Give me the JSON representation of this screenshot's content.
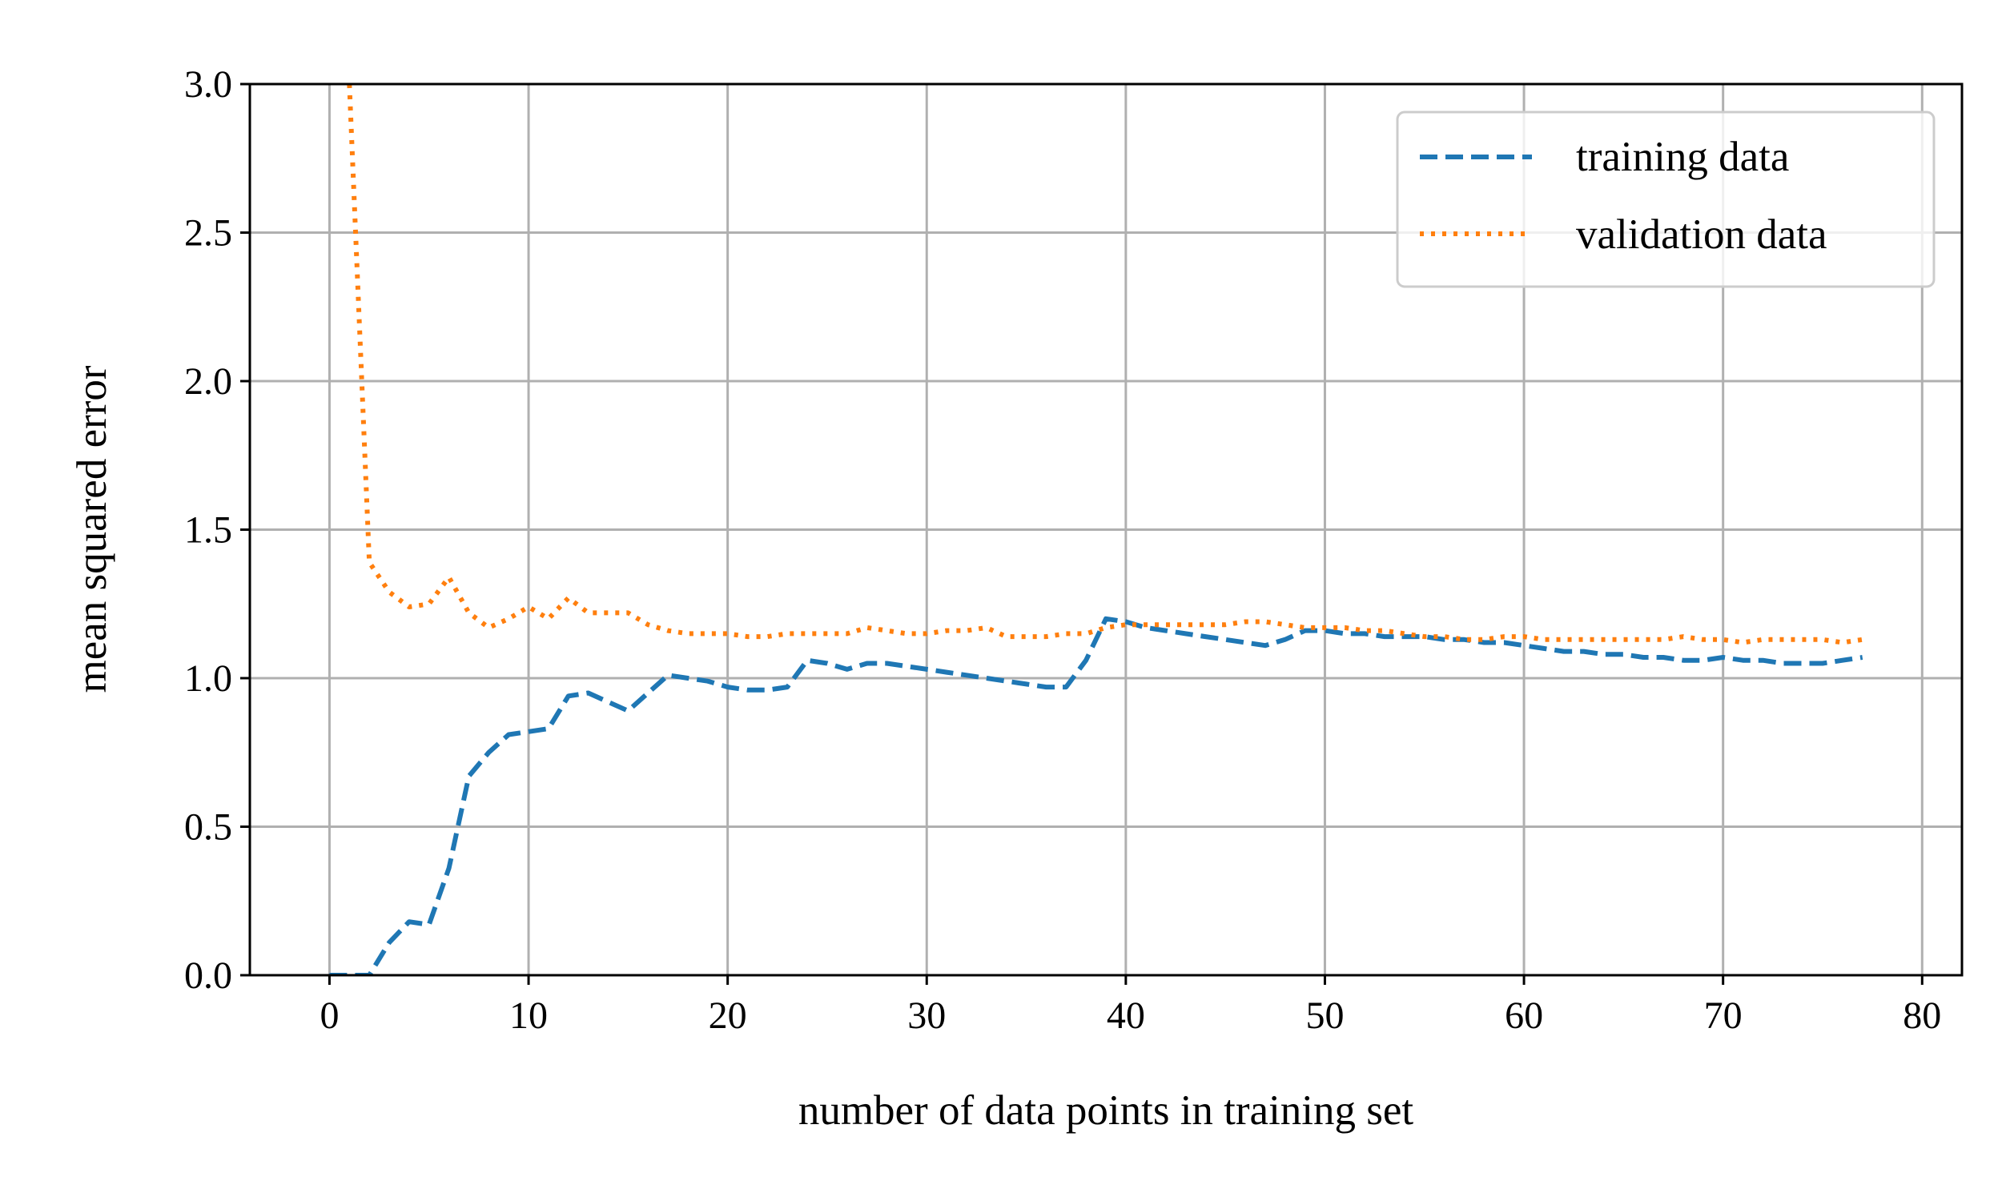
{
  "chart_data": {
    "type": "line",
    "title": "",
    "xlabel": "number of data points in training set",
    "ylabel": "mean squared error",
    "xlim": [
      -4,
      82
    ],
    "ylim": [
      0,
      3.0
    ],
    "xticks": [
      0,
      10,
      20,
      30,
      40,
      50,
      60,
      70,
      80
    ],
    "xtick_labels": [
      "0",
      "10",
      "20",
      "30",
      "40",
      "50",
      "60",
      "70",
      "80"
    ],
    "yticks": [
      0.0,
      0.5,
      1.0,
      1.5,
      2.0,
      2.5,
      3.0
    ],
    "ytick_labels": [
      "0.0",
      "0.5",
      "1.0",
      "1.5",
      "2.0",
      "2.5",
      "3.0"
    ],
    "grid": true,
    "legend_position": "top-right",
    "series": [
      {
        "name": "training data",
        "color": "#1f77b4",
        "linestyle": "dashed",
        "x": [
          0,
          1,
          2,
          3,
          4,
          5,
          6,
          7,
          8,
          9,
          10,
          11,
          12,
          13,
          14,
          15,
          16,
          17,
          18,
          19,
          20,
          21,
          22,
          23,
          24,
          25,
          26,
          27,
          28,
          29,
          30,
          31,
          32,
          33,
          34,
          35,
          36,
          37,
          38,
          39,
          40,
          41,
          42,
          43,
          44,
          45,
          46,
          47,
          48,
          49,
          50,
          51,
          52,
          53,
          54,
          55,
          56,
          57,
          58,
          59,
          60,
          61,
          62,
          63,
          64,
          65,
          66,
          67,
          68,
          69,
          70,
          71,
          72,
          73,
          74,
          75,
          76,
          77
        ],
        "y": [
          0.0,
          0.0,
          0.0,
          0.11,
          0.18,
          0.17,
          0.36,
          0.67,
          0.75,
          0.81,
          0.82,
          0.83,
          0.94,
          0.95,
          0.92,
          0.89,
          0.95,
          1.01,
          1.0,
          0.99,
          0.97,
          0.96,
          0.96,
          0.97,
          1.06,
          1.05,
          1.03,
          1.05,
          1.05,
          1.04,
          1.03,
          1.02,
          1.01,
          1.0,
          0.99,
          0.98,
          0.97,
          0.97,
          1.06,
          1.2,
          1.19,
          1.17,
          1.16,
          1.15,
          1.14,
          1.13,
          1.12,
          1.11,
          1.13,
          1.16,
          1.16,
          1.15,
          1.15,
          1.14,
          1.14,
          1.14,
          1.13,
          1.13,
          1.12,
          1.12,
          1.11,
          1.1,
          1.09,
          1.09,
          1.08,
          1.08,
          1.07,
          1.07,
          1.06,
          1.06,
          1.07,
          1.06,
          1.06,
          1.05,
          1.05,
          1.05,
          1.06,
          1.07
        ]
      },
      {
        "name": "validation data",
        "color": "#ff7f0e",
        "linestyle": "dotted",
        "x": [
          1,
          2,
          3,
          4,
          5,
          6,
          7,
          8,
          9,
          10,
          11,
          12,
          13,
          14,
          15,
          16,
          17,
          18,
          19,
          20,
          21,
          22,
          23,
          24,
          25,
          26,
          27,
          28,
          29,
          30,
          31,
          32,
          33,
          34,
          35,
          36,
          37,
          38,
          39,
          40,
          41,
          42,
          43,
          44,
          45,
          46,
          47,
          48,
          49,
          50,
          51,
          52,
          53,
          54,
          55,
          56,
          57,
          58,
          59,
          60,
          61,
          62,
          63,
          64,
          65,
          66,
          67,
          68,
          69,
          70,
          71,
          72,
          73,
          74,
          75,
          76,
          77
        ],
        "y": [
          3.0,
          1.39,
          1.29,
          1.24,
          1.25,
          1.34,
          1.22,
          1.17,
          1.2,
          1.24,
          1.2,
          1.27,
          1.22,
          1.22,
          1.22,
          1.18,
          1.16,
          1.15,
          1.15,
          1.15,
          1.14,
          1.14,
          1.15,
          1.15,
          1.15,
          1.15,
          1.17,
          1.16,
          1.15,
          1.15,
          1.16,
          1.16,
          1.17,
          1.14,
          1.14,
          1.14,
          1.15,
          1.15,
          1.17,
          1.18,
          1.18,
          1.18,
          1.18,
          1.18,
          1.18,
          1.19,
          1.19,
          1.18,
          1.17,
          1.17,
          1.17,
          1.16,
          1.16,
          1.15,
          1.14,
          1.14,
          1.13,
          1.13,
          1.14,
          1.14,
          1.13,
          1.13,
          1.13,
          1.13,
          1.13,
          1.13,
          1.13,
          1.14,
          1.13,
          1.13,
          1.12,
          1.13,
          1.13,
          1.13,
          1.13,
          1.12,
          1.13
        ]
      }
    ]
  }
}
